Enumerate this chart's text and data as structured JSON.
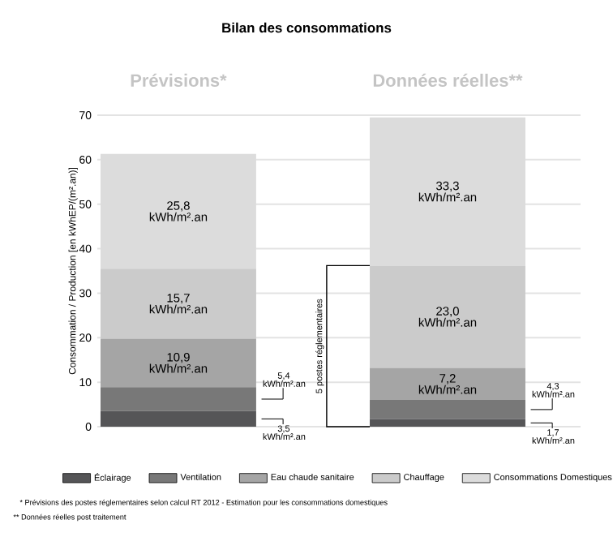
{
  "chart_data": {
    "type": "bar",
    "stacked": true,
    "title": "Bilan des consommations",
    "categories": [
      "Prévisions*",
      "Données réelles**"
    ],
    "ylabel": "Consommation / Production [en kWhEP/(m².an)]",
    "ylim": [
      0,
      70
    ],
    "yticks": [
      0,
      10,
      20,
      30,
      40,
      50,
      60,
      70
    ],
    "grid": "y",
    "legend": "bottom",
    "series": [
      {
        "name": "Éclairage",
        "color": "#555557",
        "values": [
          3.5,
          1.7
        ],
        "value_labels": [
          "3,5 kWh/m².an",
          "1,7 kWh/m².an"
        ]
      },
      {
        "name": "Ventilation",
        "color": "#787878",
        "values": [
          5.4,
          4.3
        ],
        "value_labels": [
          "5,4 kWh/m².an",
          "4,3 kWh/m².an"
        ]
      },
      {
        "name": "Eau chaude sanitaire",
        "color": "#a5a5a5",
        "values": [
          10.9,
          7.2
        ],
        "value_labels": [
          "10,9 kWh/m².an",
          "7,2 kWh/m².an"
        ]
      },
      {
        "name": "Chauffage",
        "color": "#cbcbcb",
        "values": [
          15.7,
          23.0
        ],
        "value_labels": [
          "15,7 kWh/m².an",
          "23,0 kWh/m².an"
        ]
      },
      {
        "name": "Consommations Domestiques",
        "color": "#dcdcdc",
        "values": [
          25.8,
          33.3
        ],
        "value_labels": [
          "25,8 kWh/m².an",
          "33,3 kWh/m².an"
        ]
      }
    ],
    "annotations": [
      "5 postes réglementaires",
      "* Prévisions des postes réglementaires selon calcul RT 2012 - Estimation pour les consommations domestiques",
      "** Données réelles post traitement"
    ]
  }
}
